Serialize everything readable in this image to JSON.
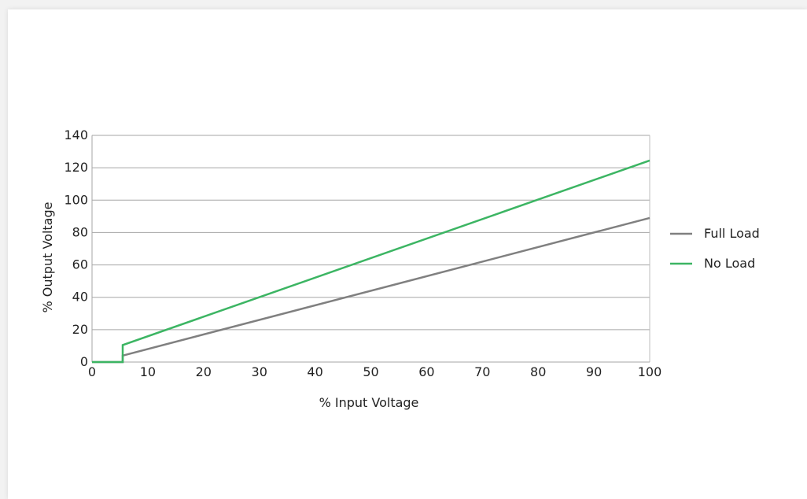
{
  "chart_data": {
    "type": "line",
    "xlabel": "% Input Voltage",
    "ylabel": "% Output Voltage",
    "xlim": [
      0,
      100
    ],
    "ylim": [
      0,
      140
    ],
    "xticks": [
      0,
      10,
      20,
      30,
      40,
      50,
      60,
      70,
      80,
      90,
      100
    ],
    "yticks": [
      0,
      20,
      40,
      60,
      80,
      100,
      120,
      140
    ],
    "grid": {
      "horizontal": true,
      "vertical": false
    },
    "legend_position": "right",
    "series": [
      {
        "name": "Full Load",
        "color": "#808080",
        "points": [
          [
            0,
            0
          ],
          [
            5.5,
            0
          ],
          [
            5.5,
            4
          ],
          [
            100,
            89
          ]
        ]
      },
      {
        "name": "No Load",
        "color": "#3cb563",
        "points": [
          [
            0,
            0
          ],
          [
            5.5,
            0
          ],
          [
            5.5,
            10.5
          ],
          [
            100,
            124.5
          ]
        ]
      }
    ]
  }
}
